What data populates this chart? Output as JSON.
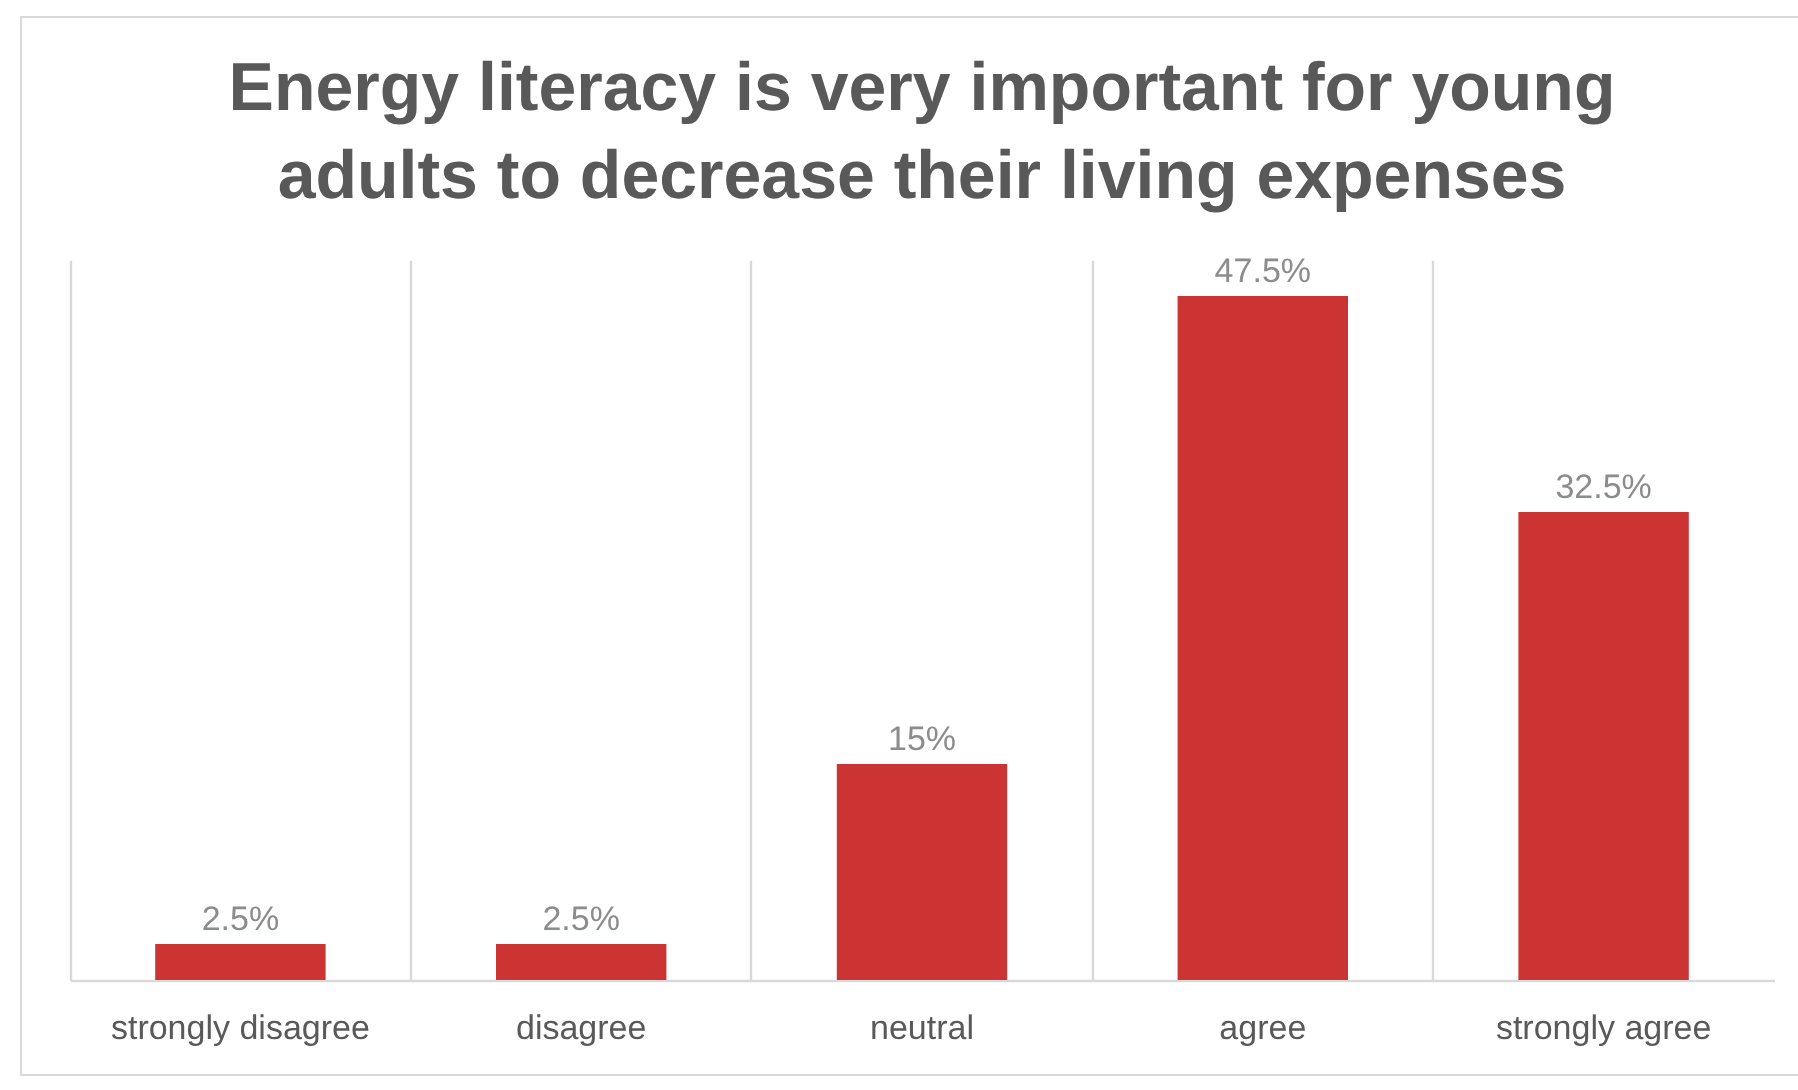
{
  "chart_data": {
    "type": "bar",
    "title": "Energy literacy is very important for young adults to decrease their living expenses",
    "categories": [
      "strongly disagree",
      "disagree",
      "neutral",
      "agree",
      "strongly agree"
    ],
    "values": [
      2.5,
      2.5,
      15,
      47.5,
      32.5
    ],
    "value_labels": [
      "2.5%",
      "2.5%",
      "15%",
      "47.5%",
      "32.5%"
    ],
    "color": "#cc3333",
    "grid": "x"
  }
}
